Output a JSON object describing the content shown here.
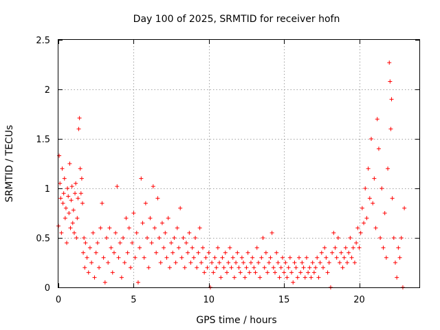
{
  "chart_data": {
    "type": "scatter",
    "title": "Day 100 of 2025, SRMTID for receiver hofn",
    "xlabel": "GPS time / hours",
    "ylabel": "SRMTID / TECUs",
    "xlim": [
      0,
      24
    ],
    "ylim": [
      0,
      2.5
    ],
    "xticks": [
      0,
      5,
      10,
      15,
      20
    ],
    "xtick_labels": [
      "0",
      "5",
      "10",
      "15",
      "20"
    ],
    "yticks": [
      0,
      0.5,
      1,
      1.5,
      2,
      2.5
    ],
    "ytick_labels": [
      "0",
      "0.5",
      "1",
      "1.5",
      "2",
      "2.5"
    ],
    "grid": true,
    "marker": "+",
    "color": "#ff0000",
    "series": [
      {
        "name": "SRMTID",
        "points": [
          [
            0.0,
            0.62
          ],
          [
            0.05,
            1.33
          ],
          [
            0.1,
            1.05
          ],
          [
            0.15,
            0.9
          ],
          [
            0.2,
            0.55
          ],
          [
            0.25,
            1.2
          ],
          [
            0.3,
            0.85
          ],
          [
            0.35,
            0.95
          ],
          [
            0.4,
            1.1
          ],
          [
            0.45,
            0.7
          ],
          [
            0.5,
            0.8
          ],
          [
            0.55,
            0.45
          ],
          [
            0.6,
            1.0
          ],
          [
            0.65,
            0.92
          ],
          [
            0.7,
            0.75
          ],
          [
            0.75,
            1.25
          ],
          [
            0.8,
            0.6
          ],
          [
            0.85,
            0.88
          ],
          [
            0.9,
            1.02
          ],
          [
            0.95,
            0.65
          ],
          [
            1.0,
            0.78
          ],
          [
            1.05,
            0.55
          ],
          [
            1.1,
            0.95
          ],
          [
            1.15,
            1.05
          ],
          [
            1.2,
            0.5
          ],
          [
            1.25,
            0.7
          ],
          [
            1.3,
            0.9
          ],
          [
            1.35,
            1.6
          ],
          [
            1.4,
            1.71
          ],
          [
            1.45,
            1.2
          ],
          [
            1.5,
            0.95
          ],
          [
            1.55,
            1.1
          ],
          [
            1.6,
            0.85
          ],
          [
            1.65,
            0.35
          ],
          [
            1.7,
            0.5
          ],
          [
            1.75,
            0.2
          ],
          [
            1.8,
            0.45
          ],
          [
            1.9,
            0.3
          ],
          [
            2.0,
            0.15
          ],
          [
            2.1,
            0.4
          ],
          [
            2.2,
            0.25
          ],
          [
            2.3,
            0.55
          ],
          [
            2.4,
            0.1
          ],
          [
            2.5,
            0.35
          ],
          [
            2.6,
            0.45
          ],
          [
            2.7,
            0.2
          ],
          [
            2.8,
            0.6
          ],
          [
            2.9,
            0.85
          ],
          [
            3.0,
            0.3
          ],
          [
            3.1,
            0.05
          ],
          [
            3.2,
            0.5
          ],
          [
            3.3,
            0.25
          ],
          [
            3.4,
            0.6
          ],
          [
            3.5,
            0.4
          ],
          [
            3.6,
            0.15
          ],
          [
            3.7,
            0.35
          ],
          [
            3.8,
            0.55
          ],
          [
            3.9,
            1.02
          ],
          [
            4.0,
            0.3
          ],
          [
            4.1,
            0.45
          ],
          [
            4.2,
            0.1
          ],
          [
            4.3,
            0.5
          ],
          [
            4.4,
            0.25
          ],
          [
            4.5,
            0.7
          ],
          [
            4.6,
            0.35
          ],
          [
            4.7,
            0.6
          ],
          [
            4.8,
            0.2
          ],
          [
            4.9,
            0.45
          ],
          [
            5.0,
            0.75
          ],
          [
            5.1,
            0.3
          ],
          [
            5.2,
            0.55
          ],
          [
            5.3,
            0.05
          ],
          [
            5.4,
            0.4
          ],
          [
            5.5,
            1.1
          ],
          [
            5.6,
            0.65
          ],
          [
            5.7,
            0.3
          ],
          [
            5.8,
            0.85
          ],
          [
            5.9,
            0.5
          ],
          [
            6.0,
            0.2
          ],
          [
            6.1,
            0.7
          ],
          [
            6.2,
            0.45
          ],
          [
            6.3,
            1.02
          ],
          [
            6.4,
            0.6
          ],
          [
            6.5,
            0.35
          ],
          [
            6.6,
            0.9
          ],
          [
            6.7,
            0.5
          ],
          [
            6.8,
            0.25
          ],
          [
            6.9,
            0.65
          ],
          [
            7.0,
            0.4
          ],
          [
            7.1,
            0.55
          ],
          [
            7.2,
            0.3
          ],
          [
            7.3,
            0.7
          ],
          [
            7.4,
            0.2
          ],
          [
            7.5,
            0.45
          ],
          [
            7.6,
            0.35
          ],
          [
            7.7,
            0.5
          ],
          [
            7.8,
            0.25
          ],
          [
            7.9,
            0.6
          ],
          [
            8.0,
            0.4
          ],
          [
            8.1,
            0.8
          ],
          [
            8.2,
            0.3
          ],
          [
            8.3,
            0.5
          ],
          [
            8.4,
            0.2
          ],
          [
            8.5,
            0.45
          ],
          [
            8.6,
            0.35
          ],
          [
            8.7,
            0.55
          ],
          [
            8.8,
            0.25
          ],
          [
            8.9,
            0.4
          ],
          [
            9.0,
            0.3
          ],
          [
            9.1,
            0.5
          ],
          [
            9.2,
            0.2
          ],
          [
            9.3,
            0.35
          ],
          [
            9.4,
            0.6
          ],
          [
            9.5,
            0.25
          ],
          [
            9.6,
            0.4
          ],
          [
            9.7,
            0.15
          ],
          [
            9.8,
            0.3
          ],
          [
            9.9,
            0.2
          ],
          [
            10.0,
            0.35
          ],
          [
            10.1,
            0.0
          ],
          [
            10.2,
            0.25
          ],
          [
            10.3,
            0.15
          ],
          [
            10.4,
            0.3
          ],
          [
            10.5,
            0.2
          ],
          [
            10.6,
            0.4
          ],
          [
            10.7,
            0.25
          ],
          [
            10.8,
            0.1
          ],
          [
            10.9,
            0.3
          ],
          [
            11.0,
            0.2
          ],
          [
            11.1,
            0.35
          ],
          [
            11.2,
            0.15
          ],
          [
            11.3,
            0.25
          ],
          [
            11.4,
            0.4
          ],
          [
            11.5,
            0.2
          ],
          [
            11.6,
            0.3
          ],
          [
            11.7,
            0.1
          ],
          [
            11.8,
            0.25
          ],
          [
            11.9,
            0.35
          ],
          [
            12.0,
            0.2
          ],
          [
            12.1,
            0.15
          ],
          [
            12.2,
            0.3
          ],
          [
            12.3,
            0.25
          ],
          [
            12.4,
            0.1
          ],
          [
            12.5,
            0.2
          ],
          [
            12.6,
            0.35
          ],
          [
            12.7,
            0.15
          ],
          [
            12.8,
            0.25
          ],
          [
            12.9,
            0.3
          ],
          [
            13.0,
            0.2
          ],
          [
            13.1,
            0.15
          ],
          [
            13.2,
            0.4
          ],
          [
            13.3,
            0.25
          ],
          [
            13.4,
            0.1
          ],
          [
            13.5,
            0.3
          ],
          [
            13.6,
            0.5
          ],
          [
            13.7,
            0.2
          ],
          [
            13.8,
            0.35
          ],
          [
            13.9,
            0.15
          ],
          [
            14.0,
            0.25
          ],
          [
            14.1,
            0.3
          ],
          [
            14.2,
            0.55
          ],
          [
            14.3,
            0.2
          ],
          [
            14.4,
            0.15
          ],
          [
            14.5,
            0.35
          ],
          [
            14.6,
            0.25
          ],
          [
            14.7,
            0.1
          ],
          [
            14.8,
            0.2
          ],
          [
            14.9,
            0.3
          ],
          [
            15.0,
            0.15
          ],
          [
            15.1,
            0.25
          ],
          [
            15.2,
            0.1
          ],
          [
            15.3,
            0.2
          ],
          [
            15.4,
            0.3
          ],
          [
            15.5,
            0.15
          ],
          [
            15.6,
            0.05
          ],
          [
            15.7,
            0.25
          ],
          [
            15.8,
            0.2
          ],
          [
            15.9,
            0.1
          ],
          [
            16.0,
            0.3
          ],
          [
            16.1,
            0.15
          ],
          [
            16.2,
            0.25
          ],
          [
            16.3,
            0.2
          ],
          [
            16.4,
            0.1
          ],
          [
            16.5,
            0.3
          ],
          [
            16.6,
            0.15
          ],
          [
            16.7,
            0.2
          ],
          [
            16.8,
            0.1
          ],
          [
            16.9,
            0.25
          ],
          [
            17.0,
            0.15
          ],
          [
            17.1,
            0.2
          ],
          [
            17.2,
            0.3
          ],
          [
            17.3,
            0.1
          ],
          [
            17.4,
            0.25
          ],
          [
            17.5,
            0.35
          ],
          [
            17.6,
            0.2
          ],
          [
            17.7,
            0.4
          ],
          [
            17.8,
            0.3
          ],
          [
            17.9,
            0.15
          ],
          [
            18.0,
            0.25
          ],
          [
            18.1,
            0.0
          ],
          [
            18.2,
            0.35
          ],
          [
            18.3,
            0.55
          ],
          [
            18.4,
            0.4
          ],
          [
            18.5,
            0.3
          ],
          [
            18.6,
            0.5
          ],
          [
            18.7,
            0.25
          ],
          [
            18.8,
            0.35
          ],
          [
            18.9,
            0.2
          ],
          [
            19.0,
            0.3
          ],
          [
            19.1,
            0.4
          ],
          [
            19.2,
            0.25
          ],
          [
            19.3,
            0.35
          ],
          [
            19.4,
            0.5
          ],
          [
            19.5,
            0.3
          ],
          [
            19.6,
            0.4
          ],
          [
            19.7,
            0.25
          ],
          [
            19.8,
            0.45
          ],
          [
            19.9,
            0.6
          ],
          [
            20.0,
            0.4
          ],
          [
            20.1,
            0.55
          ],
          [
            20.2,
            0.8
          ],
          [
            20.3,
            0.65
          ],
          [
            20.4,
            1.0
          ],
          [
            20.5,
            0.7
          ],
          [
            20.6,
            1.2
          ],
          [
            20.7,
            0.9
          ],
          [
            20.8,
            1.5
          ],
          [
            20.9,
            0.85
          ],
          [
            21.0,
            1.1
          ],
          [
            21.1,
            0.6
          ],
          [
            21.2,
            1.7
          ],
          [
            21.3,
            1.4
          ],
          [
            21.4,
            0.5
          ],
          [
            21.5,
            1.0
          ],
          [
            21.6,
            0.4
          ],
          [
            21.7,
            0.75
          ],
          [
            21.8,
            0.3
          ],
          [
            21.9,
            1.2
          ],
          [
            22.0,
            2.27
          ],
          [
            22.05,
            2.08
          ],
          [
            22.1,
            1.6
          ],
          [
            22.15,
            1.9
          ],
          [
            22.2,
            0.9
          ],
          [
            22.3,
            0.5
          ],
          [
            22.4,
            0.25
          ],
          [
            22.5,
            0.1
          ],
          [
            22.6,
            0.4
          ],
          [
            22.7,
            0.3
          ],
          [
            22.8,
            0.5
          ],
          [
            22.9,
            0.0
          ],
          [
            23.0,
            0.8
          ]
        ]
      }
    ]
  }
}
